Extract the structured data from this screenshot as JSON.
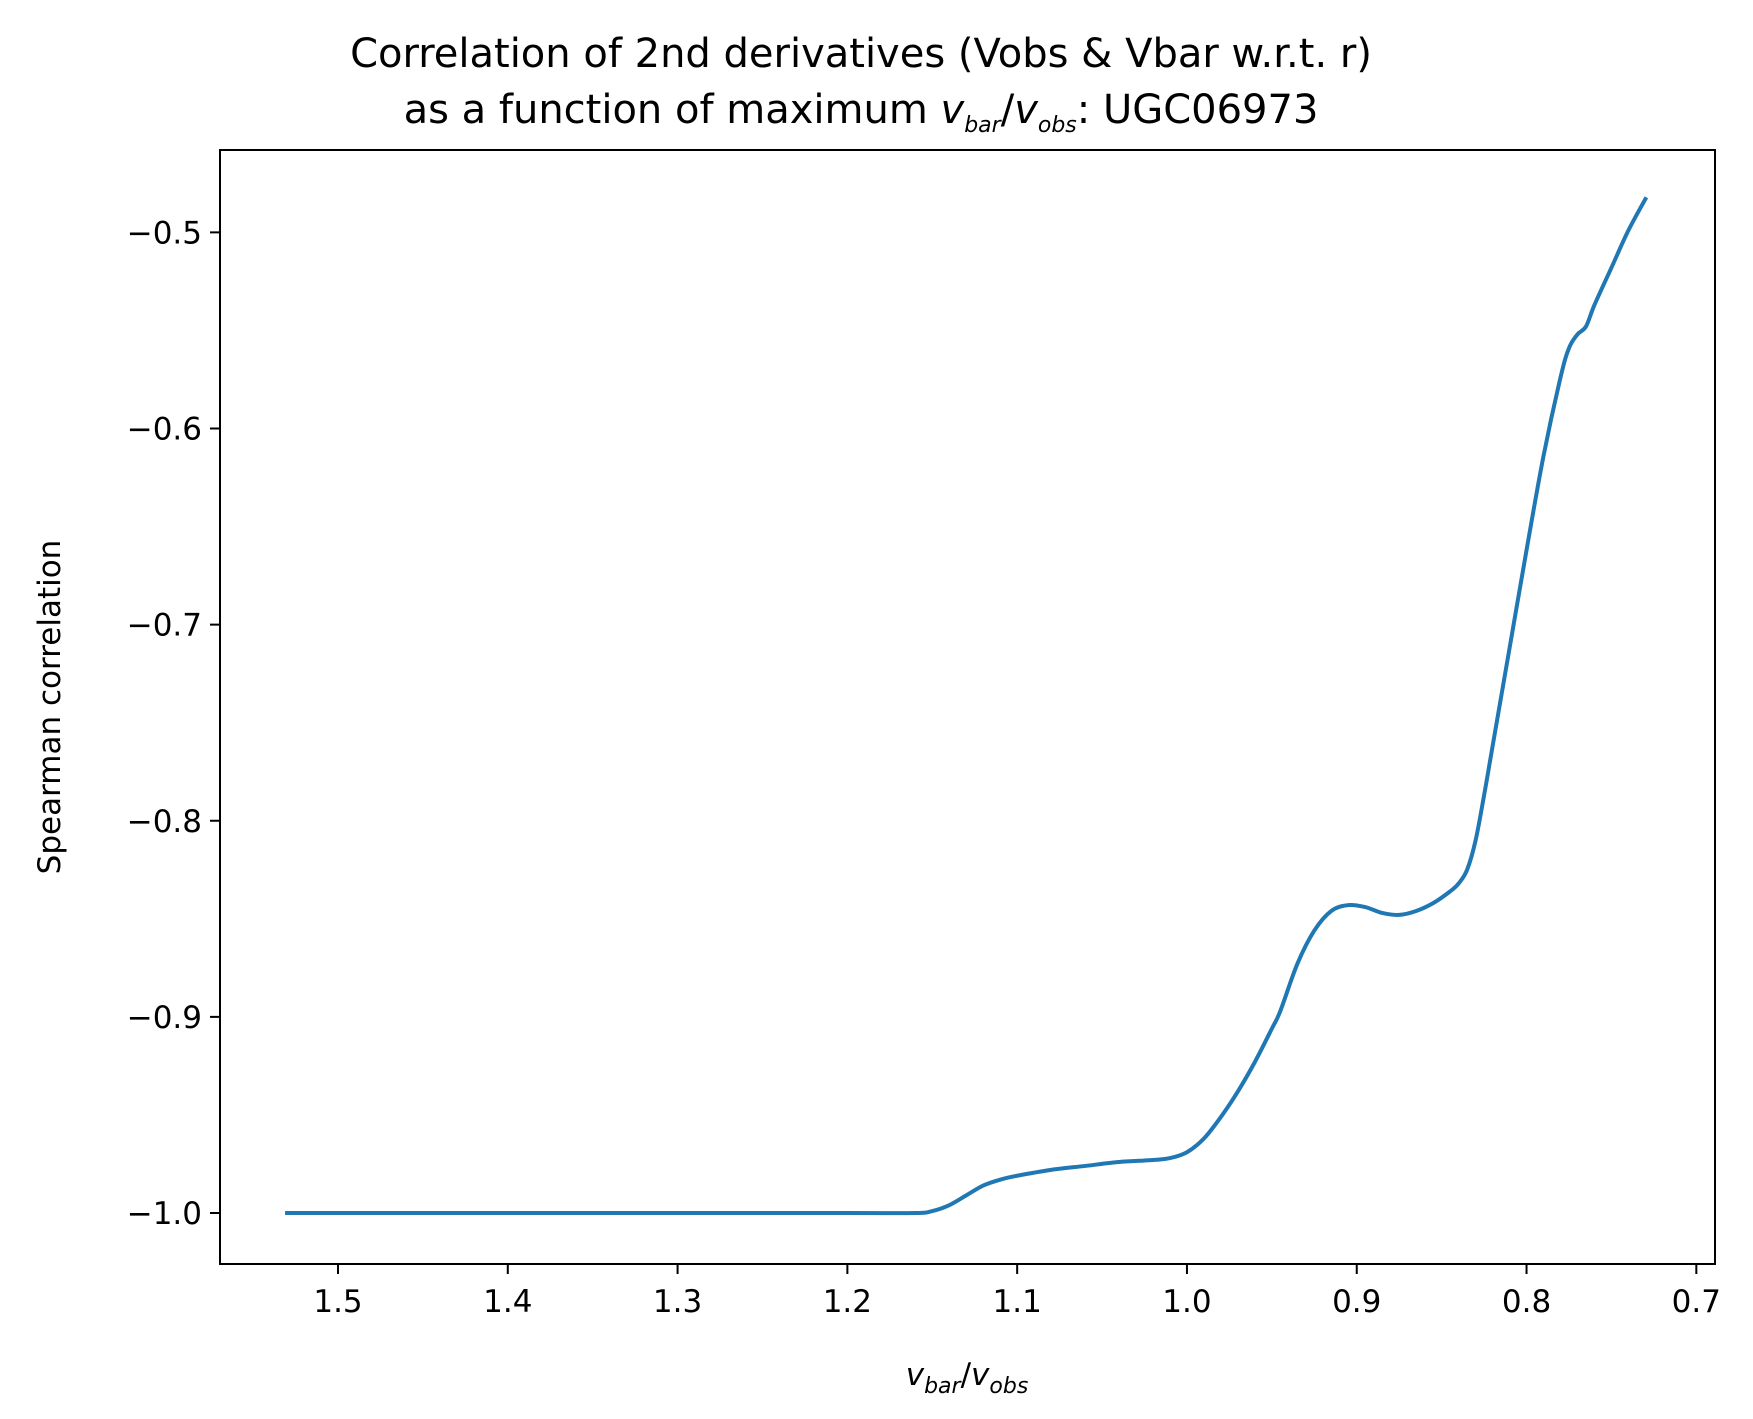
{
  "chart_data": {
    "type": "line",
    "title_line1": "Correlation of 2nd derivatives (Vobs & Vbar w.r.t. r)",
    "title_line2_prefix": "as a function of maximum ",
    "title_line2_suffix": ": UGC06973",
    "var_v": "v",
    "sub_bar": "bar",
    "sub_obs": "obs",
    "slash": "/",
    "ylabel": "Spearman correlation",
    "xlim": [
      1.5695,
      0.689
    ],
    "ylim": [
      -1.026,
      -0.458
    ],
    "x_reversed": true,
    "grid": false,
    "x_ticks": [
      1.5,
      1.4,
      1.3,
      1.2,
      1.1,
      1.0,
      0.9,
      0.8,
      0.7
    ],
    "x_tick_labels": [
      "1.5",
      "1.4",
      "1.3",
      "1.2",
      "1.1",
      "1.0",
      "0.9",
      "0.8",
      "0.7"
    ],
    "y_ticks": [
      -1.0,
      -0.9,
      -0.8,
      -0.7,
      -0.6,
      -0.5
    ],
    "y_tick_labels": [
      "−1.0",
      "−0.9",
      "−0.8",
      "−0.7",
      "−0.6",
      "−0.5"
    ],
    "series": [
      {
        "color": "#1f77b4",
        "x": [
          1.53,
          1.4,
          1.3,
          1.2,
          1.16,
          1.15,
          1.14,
          1.13,
          1.12,
          1.11,
          1.1,
          1.08,
          1.06,
          1.04,
          1.02,
          1.01,
          1.0,
          0.99,
          0.98,
          0.97,
          0.96,
          0.95,
          0.945,
          0.935,
          0.925,
          0.915,
          0.905,
          0.895,
          0.885,
          0.875,
          0.865,
          0.855,
          0.845,
          0.84,
          0.835,
          0.83,
          0.825,
          0.82,
          0.81,
          0.8,
          0.79,
          0.78,
          0.775,
          0.77,
          0.765,
          0.76,
          0.75,
          0.74,
          0.73
        ],
        "y": [
          -1.0,
          -1.0,
          -1.0,
          -1.0,
          -1.0,
          -0.999,
          -0.996,
          -0.991,
          -0.986,
          -0.983,
          -0.981,
          -0.978,
          -0.976,
          -0.974,
          -0.973,
          -0.972,
          -0.969,
          -0.962,
          -0.951,
          -0.938,
          -0.923,
          -0.906,
          -0.897,
          -0.873,
          -0.856,
          -0.846,
          -0.843,
          -0.844,
          -0.847,
          -0.848,
          -0.846,
          -0.842,
          -0.836,
          -0.832,
          -0.825,
          -0.81,
          -0.787,
          -0.762,
          -0.712,
          -0.662,
          -0.614,
          -0.574,
          -0.559,
          -0.552,
          -0.548,
          -0.537,
          -0.518,
          -0.499,
          -0.483
        ]
      }
    ]
  }
}
